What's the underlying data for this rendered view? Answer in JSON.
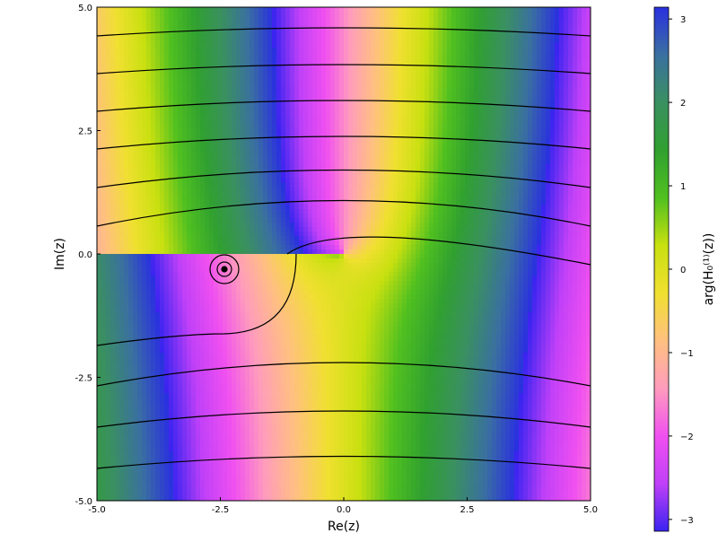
{
  "chart_data": {
    "type": "phase-plot",
    "xlabel": "Re(z)",
    "ylabel": "Im(z)",
    "xlim": [
      -5,
      5
    ],
    "ylim": [
      -5,
      5
    ],
    "xticks": [
      {
        "value": -5,
        "label": "-5.0"
      },
      {
        "value": -2.5,
        "label": "-2.5"
      },
      {
        "value": 0,
        "label": "0.0"
      },
      {
        "value": 2.5,
        "label": "2.5"
      },
      {
        "value": 5,
        "label": "5.0"
      }
    ],
    "yticks": [
      {
        "value": -5,
        "label": "-5.0"
      },
      {
        "value": -2.5,
        "label": "-2.5"
      },
      {
        "value": 0,
        "label": "0.0"
      },
      {
        "value": 2.5,
        "label": "2.5"
      },
      {
        "value": 5,
        "label": "5.0"
      }
    ],
    "colorbar": {
      "label": "arg(H₀⁽¹⁾(z))",
      "lim": [
        -3.14159,
        3.14159
      ],
      "ticks": [
        {
          "value": -3,
          "label": "−3"
        },
        {
          "value": -2,
          "label": "−2"
        },
        {
          "value": -1,
          "label": "−1"
        },
        0,
        1,
        2,
        3
      ],
      "colorscale": [
        "#3a24f0",
        "#c040f8",
        "#f050f0",
        "#ff9cbc",
        "#ffc080",
        "#f0e030",
        "#c8e010",
        "#50c020",
        "#30a030",
        "#3a9060",
        "#3a70a0",
        "#2a30e0"
      ]
    }
  }
}
